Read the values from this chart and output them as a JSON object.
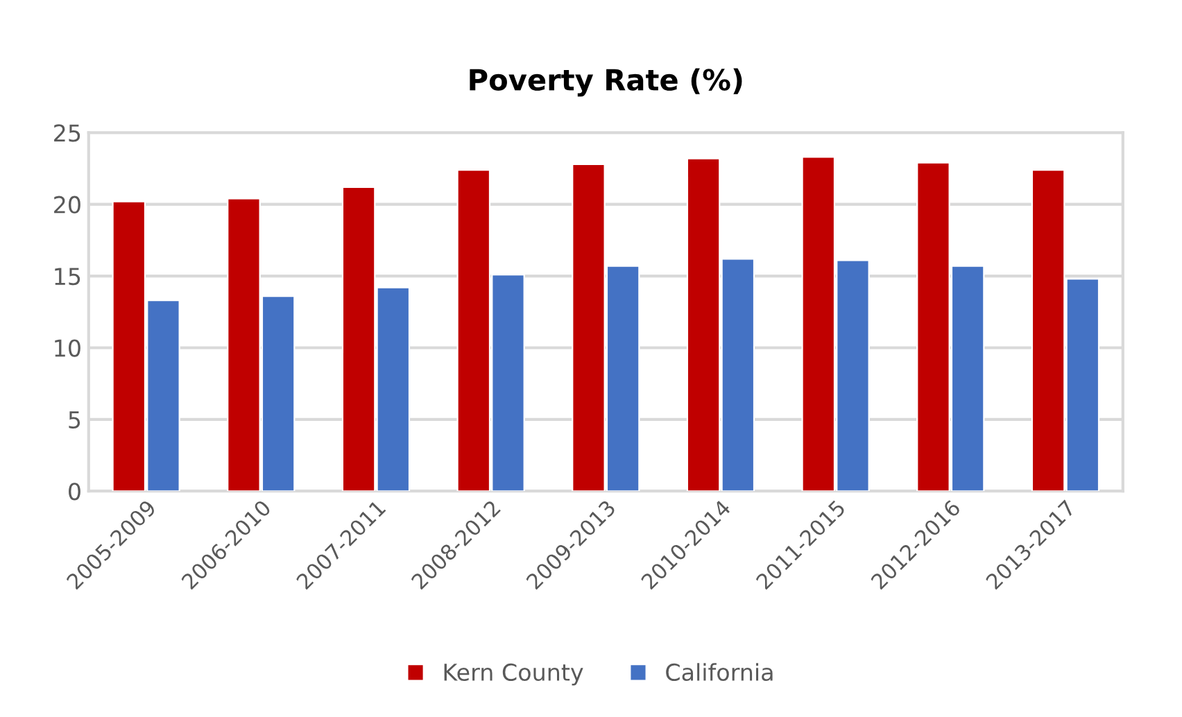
{
  "chart_data": {
    "type": "bar",
    "title": "Poverty Rate (%)",
    "categories": [
      "2005-2009",
      "2006-2010",
      "2007-2011",
      "2008-2012",
      "2009-2013",
      "2010-2014",
      "2011-2015",
      "2012-2016",
      "2013-2017"
    ],
    "series": [
      {
        "name": "Kern County",
        "color": "#c00000",
        "values": [
          20.2,
          20.4,
          21.2,
          22.4,
          22.8,
          23.2,
          23.3,
          22.9,
          22.4
        ]
      },
      {
        "name": "California",
        "color": "#4472c4",
        "values": [
          13.3,
          13.6,
          14.2,
          15.1,
          15.7,
          16.2,
          16.1,
          15.7,
          14.8
        ]
      }
    ],
    "ylim": [
      0,
      25
    ],
    "yticks": [
      0,
      5,
      10,
      15,
      20,
      25
    ],
    "grid": "y",
    "legend": "bottom"
  }
}
